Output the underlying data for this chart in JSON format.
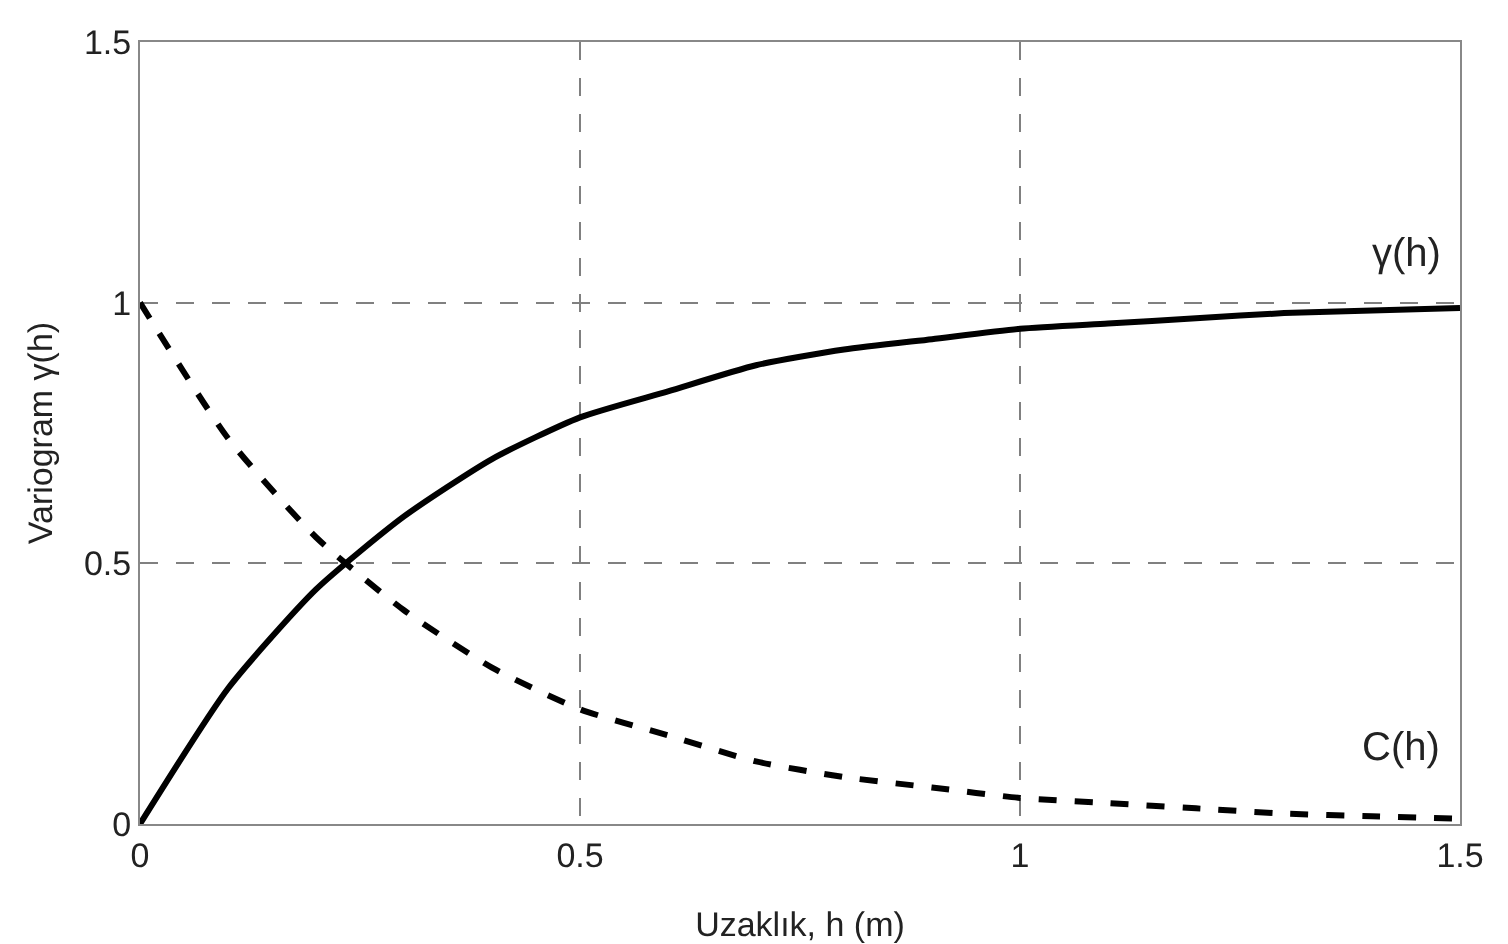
{
  "chart_data": {
    "type": "line",
    "xlabel": "Uzaklık, h (m)",
    "ylabel": "Variogram γ(h)",
    "x": [
      0,
      0.1,
      0.2,
      0.3,
      0.4,
      0.5,
      0.6,
      0.7,
      0.8,
      0.9,
      1,
      1.1,
      1.2,
      1.3,
      1.4,
      1.5
    ],
    "series": [
      {
        "name": "γ(h)",
        "color": "#000000",
        "line_style": "solid",
        "values": [
          0,
          0.26,
          0.45,
          0.59,
          0.7,
          0.78,
          0.83,
          0.88,
          0.91,
          0.93,
          0.95,
          0.96,
          0.97,
          0.98,
          0.985,
          0.99
        ]
      },
      {
        "name": "C(h)",
        "color": "#000000",
        "line_style": "dashed",
        "values": [
          1,
          0.74,
          0.55,
          0.41,
          0.3,
          0.22,
          0.17,
          0.12,
          0.09,
          0.07,
          0.05,
          0.04,
          0.03,
          0.02,
          0.015,
          0.01
        ]
      }
    ],
    "xlim": [
      0,
      1.5
    ],
    "ylim": [
      0,
      1.5
    ],
    "xticks": [
      0,
      0.5,
      1,
      1.5
    ],
    "yticks": [
      0,
      0.5,
      1,
      1.5
    ],
    "grid": true,
    "legend": false,
    "marker": "none"
  }
}
